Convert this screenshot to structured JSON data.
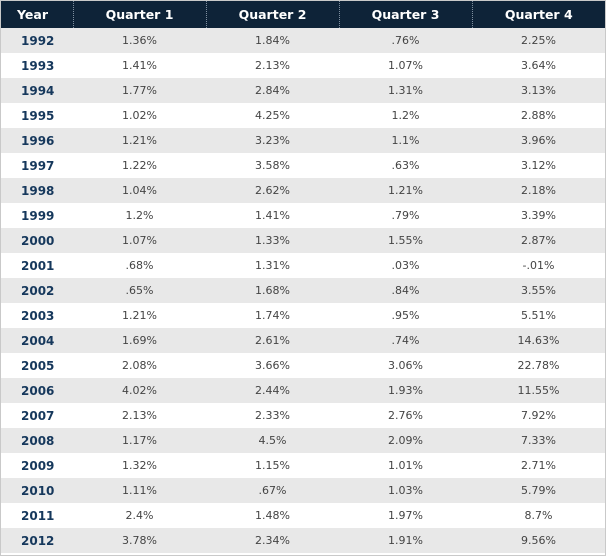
{
  "table": {
    "headers": [
      "Year",
      "Quarter 1",
      "Quarter 2",
      "Quarter 3",
      "Quarter 4"
    ],
    "rows": [
      [
        "1992",
        "1.36%",
        "1.84%",
        ".76%",
        "2.25%"
      ],
      [
        "1993",
        "1.41%",
        "2.13%",
        "1.07%",
        "3.64%"
      ],
      [
        "1994",
        "1.77%",
        "2.84%",
        "1.31%",
        "3.13%"
      ],
      [
        "1995",
        "1.02%",
        "4.25%",
        "1.2%",
        "2.88%"
      ],
      [
        "1996",
        "1.21%",
        "3.23%",
        "1.1%",
        "3.96%"
      ],
      [
        "1997",
        "1.22%",
        "3.58%",
        ".63%",
        "3.12%"
      ],
      [
        "1998",
        "1.04%",
        "2.62%",
        "1.21%",
        "2.18%"
      ],
      [
        "1999",
        "1.2%",
        "1.41%",
        ".79%",
        "3.39%"
      ],
      [
        "2000",
        "1.07%",
        "1.33%",
        "1.55%",
        "2.87%"
      ],
      [
        "2001",
        ".68%",
        "1.31%",
        ".03%",
        "-.01%"
      ],
      [
        "2002",
        ".65%",
        "1.68%",
        ".84%",
        "3.55%"
      ],
      [
        "2003",
        "1.21%",
        "1.74%",
        ".95%",
        "5.51%"
      ],
      [
        "2004",
        "1.69%",
        "2.61%",
        ".74%",
        "14.63%"
      ],
      [
        "2005",
        "2.08%",
        "3.66%",
        "3.06%",
        "22.78%"
      ],
      [
        "2006",
        "4.02%",
        "2.44%",
        "1.93%",
        "11.55%"
      ],
      [
        "2007",
        "2.13%",
        "2.33%",
        "2.76%",
        "7.92%"
      ],
      [
        "2008",
        "1.17%",
        "4.5%",
        "2.09%",
        "7.33%"
      ],
      [
        "2009",
        "1.32%",
        "1.15%",
        "1.01%",
        "2.71%"
      ],
      [
        "2010",
        "1.11%",
        ".67%",
        "1.03%",
        "5.79%"
      ],
      [
        "2011",
        "2.4%",
        "1.48%",
        "1.97%",
        "8.7%"
      ],
      [
        "2012",
        "3.78%",
        "2.34%",
        "1.91%",
        "9.56%"
      ]
    ]
  },
  "colors": {
    "header_bg": "#0e2338",
    "header_text": "#ffffff",
    "year_text": "#16385c",
    "stripe": "#e8e8e8",
    "cell_text": "#444444"
  }
}
